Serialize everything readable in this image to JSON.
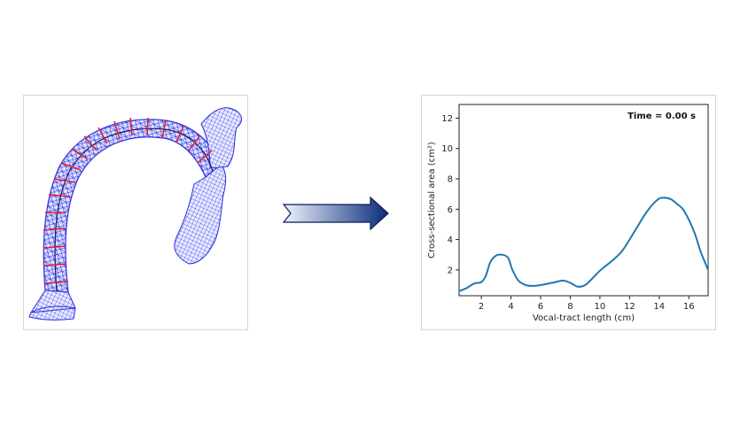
{
  "figure": {
    "left_image": {
      "icon": "vocal-tract-mesh-icon",
      "mesh_color": "#2a2ee0",
      "ring_color": "#e0202a"
    },
    "arrow": {
      "icon": "right-arrow-icon",
      "color_start": "#eef3ff",
      "color_end": "#0a2a7a"
    }
  },
  "chart_data": {
    "type": "line",
    "title": "",
    "annotation": "Time = 0.00 s",
    "xlabel": "Vocal-tract length (cm)",
    "ylabel": "Cross-sectional area (cm²)",
    "xlim": [
      0.5,
      17.3
    ],
    "ylim": [
      0.3,
      12.9
    ],
    "xticks": [
      2,
      4,
      6,
      8,
      10,
      12,
      14,
      16
    ],
    "yticks": [
      2,
      4,
      6,
      8,
      10,
      12
    ],
    "grid": false,
    "series": [
      {
        "color": "#1f77b4",
        "x": [
          0.5,
          1.0,
          1.5,
          2.0,
          2.3,
          2.6,
          3.0,
          3.4,
          3.8,
          4.1,
          4.5,
          5.0,
          5.5,
          6.0,
          6.5,
          7.0,
          7.5,
          8.0,
          8.5,
          9.0,
          9.5,
          10.0,
          10.5,
          11.0,
          11.5,
          12.0,
          12.5,
          13.0,
          13.5,
          14.0,
          14.4,
          14.8,
          15.2,
          15.6,
          16.0,
          16.4,
          16.8,
          17.3
        ],
        "y": [
          0.6,
          0.8,
          1.1,
          1.2,
          1.6,
          2.5,
          2.95,
          3.0,
          2.8,
          2.0,
          1.3,
          1.0,
          0.95,
          1.0,
          1.1,
          1.2,
          1.3,
          1.15,
          0.9,
          1.0,
          1.45,
          1.95,
          2.35,
          2.75,
          3.25,
          4.0,
          4.8,
          5.6,
          6.25,
          6.7,
          6.75,
          6.65,
          6.35,
          6.0,
          5.3,
          4.4,
          3.2,
          2.0
        ]
      }
    ]
  }
}
